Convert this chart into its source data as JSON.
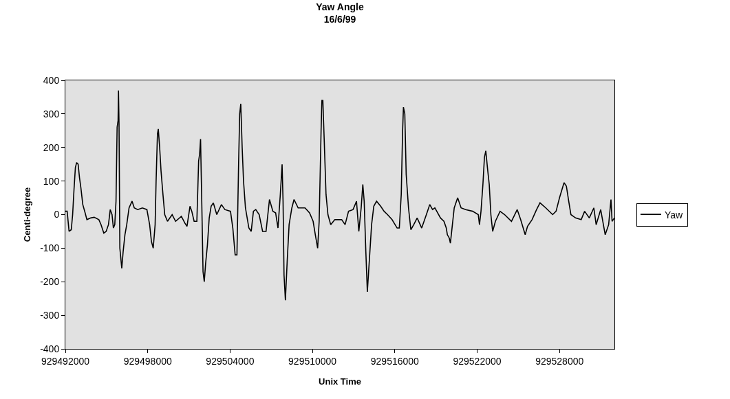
{
  "chart_data": {
    "type": "line",
    "title": "Yaw Angle",
    "subtitle": "16/6/99",
    "xlabel": "Unix Time",
    "ylabel": "Centi-degree",
    "xlim": [
      929492000,
      929532000
    ],
    "xticks": [
      929492000,
      929498000,
      929504000,
      929510000,
      929516000,
      929522000,
      929528000
    ],
    "ylim": [
      -400,
      400
    ],
    "yticks": [
      -400,
      -300,
      -200,
      -100,
      0,
      100,
      200,
      300,
      400
    ],
    "grid": false,
    "legend": "right",
    "line_style": "solid",
    "marker": "none",
    "series": [
      {
        "name": "Yaw",
        "color": "#000000",
        "x": [
          929492000,
          929492130,
          929492270,
          929492430,
          929492530,
          929492630,
          929492730,
          929492820,
          929492930,
          929493030,
          929493130,
          929493270,
          929493440,
          929493570,
          929493850,
          929494100,
          929494440,
          929494600,
          929494800,
          929494970,
          929495140,
          929495270,
          929495400,
          929495500,
          929495600,
          929495690,
          929495770,
          929495840,
          929495870,
          929495910,
          929495970,
          929496110,
          929496210,
          929496340,
          929496470,
          929496640,
          929496860,
          929497020,
          929497270,
          929497610,
          929497940,
          929498140,
          929498270,
          929498400,
          929498540,
          929498610,
          929498710,
          929498770,
          929498870,
          929498970,
          929499110,
          929499240,
          929499440,
          929499780,
          929500030,
          929500450,
          929500700,
          929500860,
          929501080,
          929501210,
          929501380,
          929501580,
          929501710,
          929501780,
          929501850,
          929501950,
          929502030,
          929502120,
          929502220,
          929502350,
          929502480,
          929502620,
          929502780,
          929503030,
          929503370,
          929503620,
          929504030,
          929504200,
          929504370,
          929504500,
          929504620,
          929504700,
          929504780,
          929504880,
          929504980,
          929505120,
          929505370,
          929505540,
          929505700,
          929505870,
          929506120,
          929506370,
          929506620,
          929506870,
          929507120,
          929507320,
          929507490,
          929507660,
          929507790,
          929507860,
          929507930,
          929508030,
          929508160,
          929508300,
          929508500,
          929508660,
          929508960,
          929509460,
          929509790,
          929510050,
          929510210,
          929510380,
          929510490,
          929510630,
          929510690,
          929510760,
          929510860,
          929510990,
          929511130,
          929511330,
          929511630,
          929512130,
          929512380,
          929512630,
          929512960,
          929513210,
          929513380,
          929513550,
          929513670,
          929513770,
          929513890,
          929514000,
          929514140,
          929514310,
          929514470,
          929514670,
          929514970,
          929515220,
          929515470,
          929515800,
          929516170,
          929516330,
          929516470,
          929516570,
          929516630,
          929516730,
          929516830,
          929517000,
          929517170,
          929517380,
          929517630,
          929517960,
          929518300,
          929518550,
          929518750,
          929518920,
          929519330,
          929519580,
          929519750,
          929519830,
          929519970,
          929520050,
          929520170,
          929520330,
          929520580,
          929520830,
          929521170,
          929521670,
          929522080,
          929522170,
          929522280,
          929522420,
          929522530,
          929522630,
          929522750,
          929522880,
          929523000,
          929523130,
          929523330,
          929523670,
          929524000,
          929524500,
          929524920,
          929525170,
          929525500,
          929525670,
          929526000,
          929526330,
          929526580,
          929527000,
          929527500,
          929527750,
          929528000,
          929528330,
          929528500,
          929528670,
          929528830,
          929529170,
          929529580,
          929529830,
          929530170,
          929530500,
          929530670,
          929531000,
          929531330,
          929531580,
          929531750,
          929531830,
          929532000
        ],
        "values": [
          10,
          10,
          -50,
          -45,
          0,
          75,
          140,
          155,
          150,
          110,
          80,
          30,
          5,
          -15,
          -10,
          -8,
          -15,
          -30,
          -55,
          -50,
          -30,
          15,
          0,
          -40,
          -30,
          40,
          260,
          280,
          370,
          270,
          -100,
          -160,
          -110,
          -60,
          -30,
          20,
          40,
          20,
          15,
          20,
          15,
          -30,
          -80,
          -100,
          -30,
          100,
          240,
          255,
          200,
          130,
          60,
          0,
          -20,
          0,
          -20,
          -5,
          -25,
          -35,
          25,
          10,
          -20,
          -20,
          160,
          180,
          225,
          10,
          -170,
          -200,
          -145,
          -90,
          -10,
          25,
          35,
          0,
          30,
          15,
          10,
          -40,
          -120,
          -120,
          150,
          300,
          330,
          200,
          100,
          20,
          -40,
          -50,
          10,
          15,
          0,
          -50,
          -50,
          45,
          10,
          5,
          -40,
          60,
          150,
          40,
          -180,
          -255,
          -140,
          -30,
          20,
          45,
          20,
          20,
          5,
          -20,
          -60,
          -100,
          -20,
          250,
          340,
          340,
          220,
          60,
          0,
          -30,
          -15,
          -15,
          -30,
          10,
          15,
          40,
          -50,
          20,
          90,
          40,
          -110,
          -230,
          -140,
          -30,
          25,
          40,
          25,
          10,
          0,
          -15,
          -40,
          -40,
          60,
          250,
          320,
          300,
          120,
          20,
          -45,
          -30,
          -10,
          -40,
          0,
          30,
          15,
          20,
          -10,
          -20,
          -40,
          -60,
          -70,
          -85,
          -40,
          20,
          50,
          20,
          15,
          10,
          0,
          -30,
          10,
          90,
          170,
          190,
          140,
          90,
          0,
          -50,
          -20,
          10,
          0,
          -20,
          15,
          -15,
          -60,
          -35,
          -15,
          15,
          35,
          20,
          0,
          10,
          50,
          95,
          85,
          40,
          0,
          -10,
          -15,
          10,
          -10,
          20,
          -30,
          15,
          -60,
          -30,
          45,
          -20,
          -10
        ]
      }
    ]
  }
}
